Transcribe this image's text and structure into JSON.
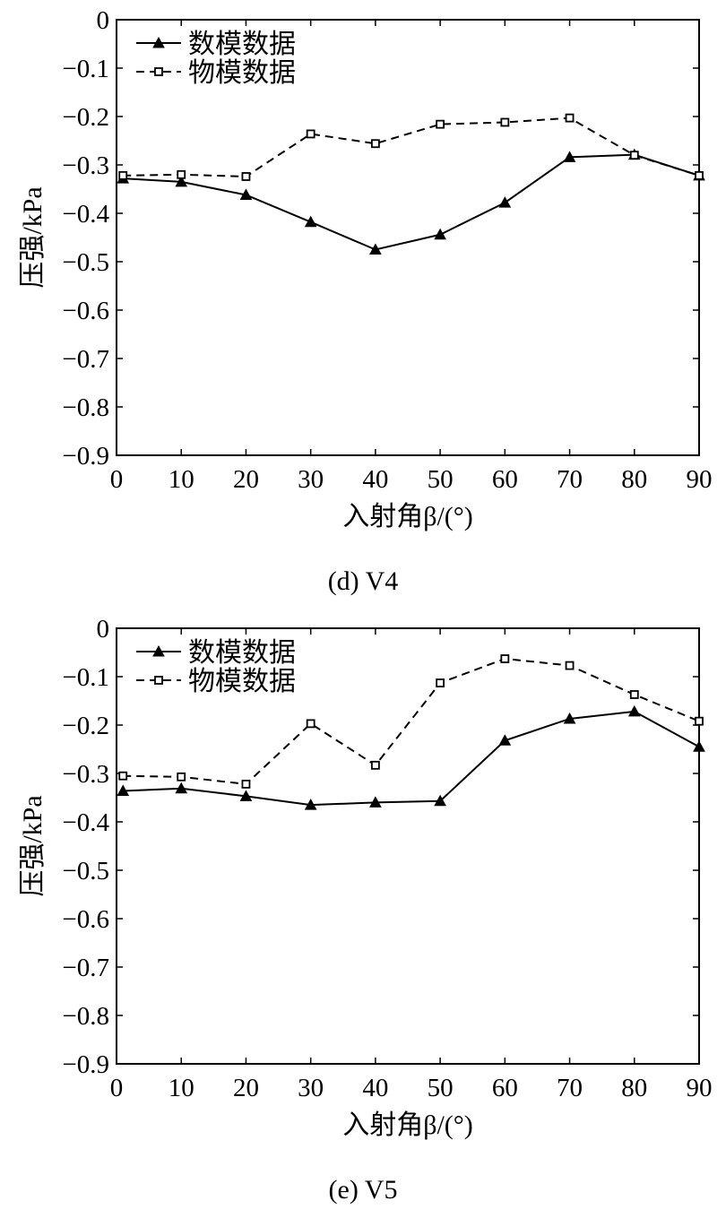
{
  "chart_data": [
    {
      "type": "line",
      "caption": "(d) V4",
      "xlabel": "入射角β/(°)",
      "ylabel": "压强/kPa",
      "xlim": [
        0,
        90
      ],
      "ylim": [
        -0.9,
        0
      ],
      "xticks": [
        "0",
        "10",
        "20",
        "30",
        "40",
        "50",
        "60",
        "70",
        "80",
        "90"
      ],
      "yticks": [
        "0",
        "−0.1",
        "−0.2",
        "−0.3",
        "−0.4",
        "−0.5",
        "−0.6",
        "−0.7",
        "−0.8",
        "−0.9"
      ],
      "grid": false,
      "legend_position": "top-left",
      "x": [
        1,
        10,
        20,
        30,
        40,
        50,
        60,
        70,
        80,
        90
      ],
      "series": [
        {
          "name": "数模数据",
          "line": "solid",
          "marker": "triangle",
          "values": [
            -0.328,
            -0.335,
            -0.362,
            -0.418,
            -0.475,
            -0.444,
            -0.378,
            -0.284,
            -0.279,
            -0.322
          ]
        },
        {
          "name": "物模数据",
          "line": "dashed",
          "marker": "square",
          "values": [
            -0.322,
            -0.32,
            -0.324,
            -0.236,
            -0.256,
            -0.216,
            -0.212,
            -0.203,
            -0.28,
            -0.322
          ]
        }
      ]
    },
    {
      "type": "line",
      "caption": "(e) V5",
      "xlabel": "入射角β/(°)",
      "ylabel": "压强/kPa",
      "xlim": [
        0,
        90
      ],
      "ylim": [
        -0.9,
        0
      ],
      "xticks": [
        "0",
        "10",
        "20",
        "30",
        "40",
        "50",
        "60",
        "70",
        "80",
        "90"
      ],
      "yticks": [
        "0",
        "−0.1",
        "−0.2",
        "−0.3",
        "−0.4",
        "−0.5",
        "−0.6",
        "−0.7",
        "−0.8",
        "−0.9"
      ],
      "grid": false,
      "legend_position": "top-left",
      "x": [
        1,
        10,
        20,
        30,
        40,
        50,
        60,
        70,
        80,
        90
      ],
      "series": [
        {
          "name": "数模数据",
          "line": "solid",
          "marker": "triangle",
          "values": [
            -0.336,
            -0.331,
            -0.347,
            -0.365,
            -0.36,
            -0.357,
            -0.232,
            -0.187,
            -0.172,
            -0.245
          ]
        },
        {
          "name": "物模数据",
          "line": "dashed",
          "marker": "square",
          "values": [
            -0.305,
            -0.307,
            -0.322,
            -0.197,
            -0.283,
            -0.113,
            -0.063,
            -0.077,
            -0.137,
            -0.192
          ]
        }
      ]
    }
  ]
}
